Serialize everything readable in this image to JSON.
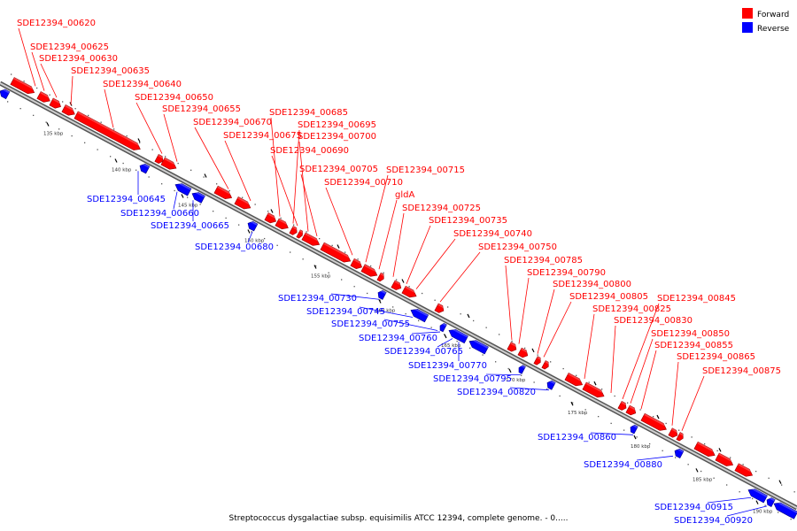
{
  "legend": {
    "forward_label": "Forward",
    "reverse_label": "Reverse",
    "forward_color": "#ff0000",
    "reverse_color": "#0000ff"
  },
  "caption": "Streptococcus dysgalactiae subsp. equisimilis ATCC 12394, complete genome. - 0.....",
  "ticks": [
    "135 kbp",
    "140 kbp",
    "145 kbp",
    "150 kbp",
    "155 kbp",
    "160 kbp",
    "165 kbp",
    "170 kbp",
    "175 kbp",
    "180 kbp",
    "185 kbp",
    "190 kbp"
  ],
  "forward_genes": [
    "SDE12394_00620",
    "SDE12394_00625",
    "SDE12394_00630",
    "SDE12394_00635",
    "SDE12394_00640",
    "SDE12394_00650",
    "SDE12394_00655",
    "SDE12394_00670",
    "SDE12394_00675",
    "SDE12394_00685",
    "SDE12394_00690",
    "SDE12394_00695",
    "SDE12394_00700",
    "SDE12394_00705",
    "SDE12394_00710",
    "SDE12394_00715",
    "gldA",
    "SDE12394_00725",
    "SDE12394_00735",
    "SDE12394_00740",
    "SDE12394_00750",
    "SDE12394_00785",
    "SDE12394_00790",
    "SDE12394_00800",
    "SDE12394_00805",
    "SDE12394_00825",
    "SDE12394_00830",
    "SDE12394_00845",
    "SDE12394_00850",
    "SDE12394_00855",
    "SDE12394_00865",
    "SDE12394_00875"
  ],
  "reverse_genes": [
    "SDE12394_00645",
    "SDE12394_00660",
    "SDE12394_00665",
    "SDE12394_00680",
    "SDE12394_00730",
    "SDE12394_00745",
    "SDE12394_00755",
    "SDE12394_00760",
    "SDE12394_00765",
    "SDE12394_00770",
    "SDE12394_00795",
    "SDE12394_00820",
    "SDE12394_00860",
    "SDE12394_00880",
    "SDE12394_00915",
    "SDE12394_00920"
  ]
}
